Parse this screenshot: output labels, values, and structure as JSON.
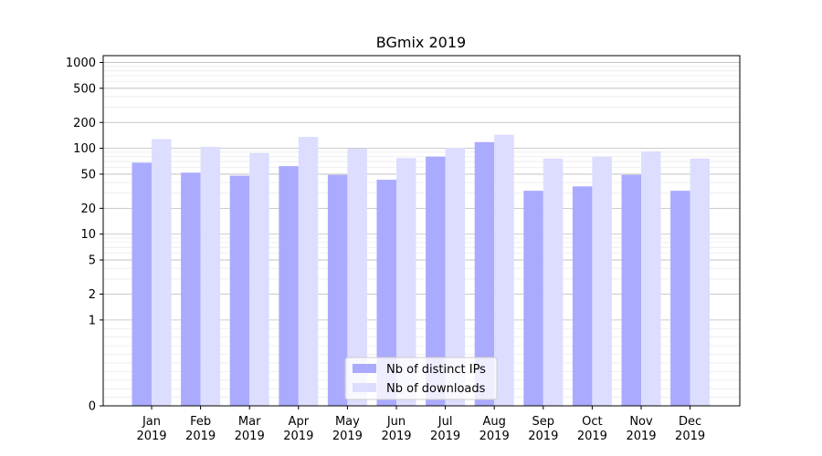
{
  "chart_data": {
    "type": "bar",
    "title": "BGmix 2019",
    "yscale": "symlog",
    "ylim": [
      0,
      1200
    ],
    "yticks": [
      0,
      1,
      2,
      5,
      10,
      20,
      50,
      100,
      200,
      500,
      1000
    ],
    "grid": true,
    "legend_position": "bottom-center",
    "categories": [
      [
        "Jan",
        "2019"
      ],
      [
        "Feb",
        "2019"
      ],
      [
        "Mar",
        "2019"
      ],
      [
        "Apr",
        "2019"
      ],
      [
        "May",
        "2019"
      ],
      [
        "Jun",
        "2019"
      ],
      [
        "Jul",
        "2019"
      ],
      [
        "Aug",
        "2019"
      ],
      [
        "Sep",
        "2019"
      ],
      [
        "Oct",
        "2019"
      ],
      [
        "Nov",
        "2019"
      ],
      [
        "Dec",
        "2019"
      ]
    ],
    "series": [
      {
        "name": "Nb of distinct IPs",
        "color": "#aaaaff",
        "values": [
          68,
          52,
          48,
          62,
          49,
          43,
          80,
          118,
          32,
          36,
          49,
          32
        ]
      },
      {
        "name": "Nb of downloads",
        "color": "#ddddff",
        "values": [
          128,
          104,
          88,
          136,
          99,
          77,
          101,
          144,
          76,
          80,
          92,
          76
        ]
      }
    ]
  }
}
